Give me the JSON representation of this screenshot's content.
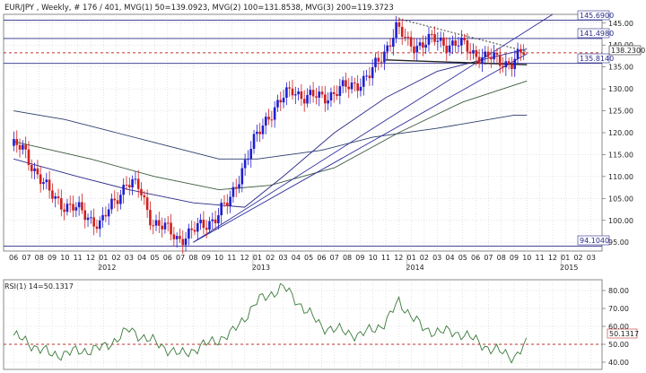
{
  "header": {
    "symbol": "EUR/JPY",
    "period": "Weekly",
    "bar_info": "# 176 / 401",
    "mvg1": "MVG(1) 50=139.0923",
    "mvg2": "MVG(2) 100=131.8538",
    "mvg3": "MVG(3) 200=119.3723"
  },
  "rsi_header": "RSI(1) 14=50.1317",
  "price_labels": {
    "h1": "145.6900",
    "h2": "141.4980",
    "last": "138.2300",
    "h3": "135.8140",
    "low": "94.1040"
  },
  "rsi_value_label": "50.1317",
  "colors": {
    "bull": "#1f1fd0",
    "bear": "#d01f1f",
    "ma50": "#2b2b8a",
    "ma100": "#3c5a3c",
    "ma200": "#2b3d6b",
    "trend": "#2b2b9a",
    "rsi": "#3a7a3a",
    "rsi_mid": "#c03030",
    "grid": "#c8c8c8",
    "hline": "#2b2b8a",
    "dashed": "#c03030"
  },
  "chart_data": [
    {
      "type": "candlestick",
      "title": "EUR/JPY, Weekly",
      "x_month_ticks": [
        "06",
        "07",
        "08",
        "09",
        "10",
        "11",
        "12",
        "01",
        "02",
        "03",
        "04",
        "05",
        "06",
        "07",
        "08",
        "09",
        "10",
        "11",
        "12",
        "01",
        "02",
        "03",
        "04",
        "05",
        "06",
        "07",
        "08",
        "09",
        "10",
        "11",
        "12",
        "01",
        "02",
        "03",
        "04",
        "05",
        "06",
        "07",
        "08",
        "09",
        "10",
        "11",
        "12",
        "01",
        "02",
        "03"
      ],
      "x_year_ticks": [
        "2012",
        "2013",
        "2014",
        "2015"
      ],
      "y_ticks": [
        95,
        100,
        105,
        110,
        115,
        120,
        125,
        130,
        135,
        140,
        145
      ],
      "ylim": [
        93,
        147
      ],
      "series_close_keypoints": [
        {
          "month": "2011-06",
          "value": 117
        },
        {
          "month": "2011-07",
          "value": 116
        },
        {
          "month": "2011-09",
          "value": 106
        },
        {
          "month": "2011-10",
          "value": 104
        },
        {
          "month": "2011-12",
          "value": 101
        },
        {
          "month": "2012-01",
          "value": 99
        },
        {
          "month": "2012-03",
          "value": 109
        },
        {
          "month": "2012-04",
          "value": 107
        },
        {
          "month": "2012-05",
          "value": 100
        },
        {
          "month": "2012-07",
          "value": 96
        },
        {
          "month": "2012-08",
          "value": 97
        },
        {
          "month": "2012-10",
          "value": 101
        },
        {
          "month": "2012-11",
          "value": 104
        },
        {
          "month": "2012-12",
          "value": 112
        },
        {
          "month": "2013-02",
          "value": 124
        },
        {
          "month": "2013-04",
          "value": 130
        },
        {
          "month": "2013-05",
          "value": 128
        },
        {
          "month": "2013-06",
          "value": 128
        },
        {
          "month": "2013-08",
          "value": 130
        },
        {
          "month": "2013-10",
          "value": 133
        },
        {
          "month": "2013-11",
          "value": 138
        },
        {
          "month": "2013-12",
          "value": 144
        },
        {
          "month": "2014-01",
          "value": 140
        },
        {
          "month": "2014-03",
          "value": 141
        },
        {
          "month": "2014-05",
          "value": 140
        },
        {
          "month": "2014-07",
          "value": 137
        },
        {
          "month": "2014-09",
          "value": 136
        },
        {
          "month": "2014-10",
          "value": 138.23
        }
      ],
      "moving_averages": [
        {
          "name": "MVG(1) 50",
          "last": 139.0923
        },
        {
          "name": "MVG(2) 100",
          "last": 131.8538
        },
        {
          "name": "MVG(3) 200",
          "last": 119.3723
        }
      ],
      "horizontal_levels": [
        145.69,
        141.498,
        138.23,
        135.814,
        94.104
      ]
    },
    {
      "type": "line",
      "title": "RSI(1) 14=50.1317",
      "y_ticks": [
        40,
        50,
        60,
        70,
        80
      ],
      "ylim": [
        36,
        86
      ],
      "reference_line": 50,
      "values_keypoints": [
        {
          "month": "2011-06",
          "value": 55
        },
        {
          "month": "2011-09",
          "value": 44
        },
        {
          "month": "2012-01",
          "value": 48
        },
        {
          "month": "2012-03",
          "value": 58
        },
        {
          "month": "2012-07",
          "value": 44
        },
        {
          "month": "2012-11",
          "value": 56
        },
        {
          "month": "2013-01",
          "value": 74
        },
        {
          "month": "2013-03",
          "value": 82
        },
        {
          "month": "2013-06",
          "value": 60
        },
        {
          "month": "2013-09",
          "value": 55
        },
        {
          "month": "2013-11",
          "value": 62
        },
        {
          "month": "2013-12",
          "value": 74
        },
        {
          "month": "2014-02",
          "value": 58
        },
        {
          "month": "2014-05",
          "value": 56
        },
        {
          "month": "2014-07",
          "value": 48
        },
        {
          "month": "2014-09",
          "value": 43
        },
        {
          "month": "2014-10",
          "value": 50.13
        }
      ]
    }
  ]
}
